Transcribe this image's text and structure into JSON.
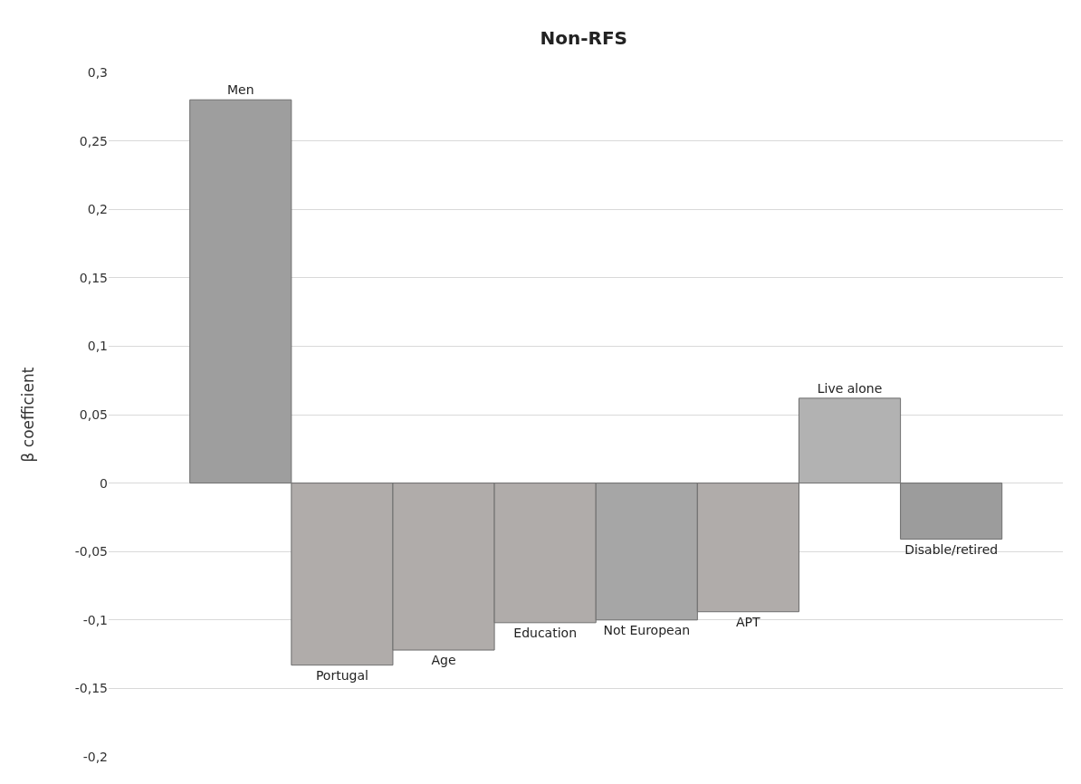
{
  "chart_data": {
    "type": "bar",
    "title": "Non-RFS",
    "ylabel": "β coefficient",
    "categories": [
      "Men",
      "Portugal",
      "Age",
      "Education",
      "Not European",
      "APT",
      "Live alone",
      "Disable/retired"
    ],
    "values": [
      0.28,
      -0.133,
      -0.122,
      -0.102,
      -0.1,
      -0.094,
      0.062,
      -0.041
    ],
    "colors": [
      "#9e9e9e",
      "#b0acaa",
      "#b0acaa",
      "#b0acaa",
      "#a6a6a6",
      "#b0acaa",
      "#b2b2b2",
      "#9c9c9c"
    ],
    "ylim": [
      -0.2,
      0.3
    ],
    "yticks": [
      {
        "value": -0.2,
        "label": "-0,2"
      },
      {
        "value": -0.15,
        "label": "-0,15"
      },
      {
        "value": -0.1,
        "label": "-0,1"
      },
      {
        "value": -0.05,
        "label": "-0,05"
      },
      {
        "value": 0,
        "label": "0"
      },
      {
        "value": 0.05,
        "label": "0,05"
      },
      {
        "value": 0.1,
        "label": "0,1"
      },
      {
        "value": 0.15,
        "label": "0,15"
      },
      {
        "value": 0.2,
        "label": "0,2"
      },
      {
        "value": 0.25,
        "label": "0,25"
      },
      {
        "value": 0.3,
        "label": "0,3"
      }
    ],
    "grid": "y",
    "tick_labels": "y",
    "legend": false
  }
}
